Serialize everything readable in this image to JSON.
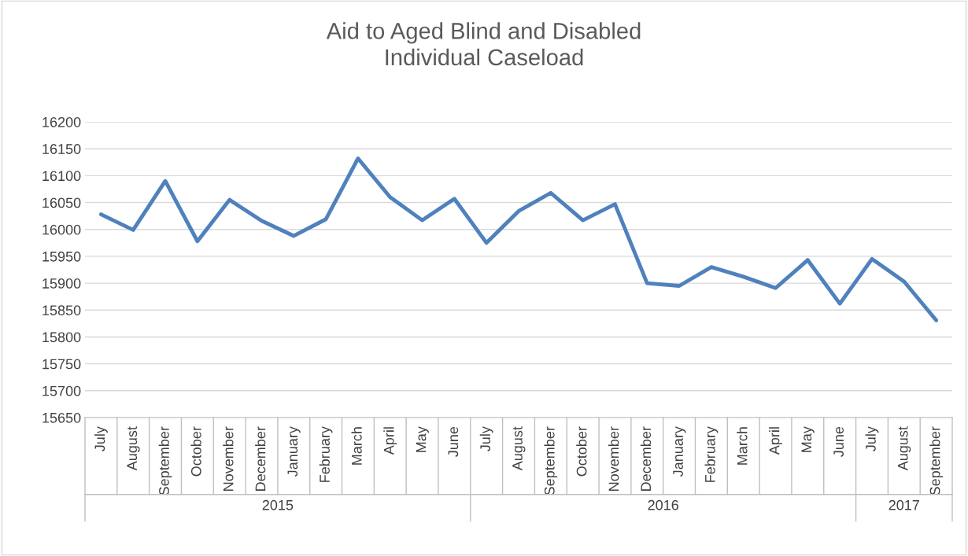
{
  "chart_data": {
    "type": "line",
    "title": "Aid to Aged Blind and Disabled\nIndividual Caseload",
    "categories": [
      "July",
      "August",
      "September",
      "October",
      "November",
      "December",
      "January",
      "February",
      "March",
      "April",
      "May",
      "June",
      "July",
      "August",
      "September",
      "October",
      "November",
      "December",
      "January",
      "February",
      "March",
      "April",
      "May",
      "June",
      "July",
      "August",
      "September"
    ],
    "series": [
      {
        "color": "#4f81bd",
        "values": [
          16028,
          15999,
          16090,
          15978,
          16055,
          16016,
          15988,
          16019,
          16132,
          16060,
          16017,
          16057,
          15975,
          16034,
          16068,
          16017,
          16047,
          15900,
          15895,
          15930,
          15912,
          15891,
          15943,
          15862,
          15945,
          15903,
          15831
        ]
      }
    ],
    "ylim": [
      15650,
      16200
    ],
    "yticks": [
      15650,
      15700,
      15750,
      15800,
      15850,
      15900,
      15950,
      16000,
      16050,
      16100,
      16150,
      16200
    ],
    "grid": "y",
    "legend": false,
    "marker": "none",
    "line_style": "solid",
    "annotations": [
      "2015",
      "2016",
      "2017"
    ]
  }
}
